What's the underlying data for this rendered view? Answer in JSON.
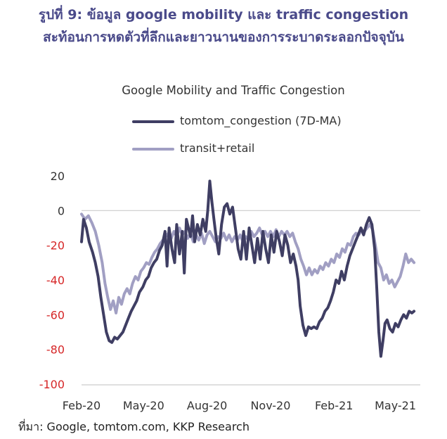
{
  "heading": {
    "line1": "รูปที่ 9: ข้อมูล google mobility และ traffic congestion",
    "line2": "สะท้อนการหดตัวที่ลึกและยาวนานของการระบาดระลอกปัจจุบัน"
  },
  "source": "ที่มา: Google, tomtom.com, KKP Research",
  "colors": {
    "heading": "#4a4a8a",
    "congestion": "#3f3e63",
    "transit": "#a19fc3",
    "positive_tick": "#333333",
    "negative_tick": "#d62728",
    "axis": "#cccccc"
  },
  "chart_data": {
    "type": "line",
    "title": "Google Mobility and Traffic Congestion",
    "xlabel": "",
    "ylabel": "",
    "ylim": [
      -100,
      20
    ],
    "yticks": [
      20,
      0,
      -20,
      -40,
      -60,
      -80,
      -100
    ],
    "xlim": [
      "2020-02-01",
      "2021-05-31"
    ],
    "xticks": [
      {
        "date": "2020-02-01",
        "label": "Feb-20"
      },
      {
        "date": "2020-05-01",
        "label": "May-20"
      },
      {
        "date": "2020-08-01",
        "label": "Aug-20"
      },
      {
        "date": "2020-11-01",
        "label": "Nov-20"
      },
      {
        "date": "2021-02-01",
        "label": "Feb-21"
      },
      {
        "date": "2021-05-01",
        "label": "May-21"
      }
    ],
    "legend_position": "top",
    "grid": false,
    "series": [
      {
        "name": "tomtom_congestion (7D-MA)",
        "points": [
          [
            "2020-02-01",
            -18
          ],
          [
            "2020-02-04",
            -5
          ],
          [
            "2020-02-08",
            -10
          ],
          [
            "2020-02-12",
            -18
          ],
          [
            "2020-02-17",
            -24
          ],
          [
            "2020-02-21",
            -30
          ],
          [
            "2020-02-25",
            -38
          ],
          [
            "2020-02-29",
            -50
          ],
          [
            "2020-03-04",
            -60
          ],
          [
            "2020-03-08",
            -70
          ],
          [
            "2020-03-12",
            -75
          ],
          [
            "2020-03-16",
            -76
          ],
          [
            "2020-03-20",
            -73
          ],
          [
            "2020-03-24",
            -74
          ],
          [
            "2020-03-28",
            -72
          ],
          [
            "2020-04-01",
            -70
          ],
          [
            "2020-04-05",
            -66
          ],
          [
            "2020-04-09",
            -62
          ],
          [
            "2020-04-13",
            -58
          ],
          [
            "2020-04-17",
            -55
          ],
          [
            "2020-04-21",
            -52
          ],
          [
            "2020-04-25",
            -47
          ],
          [
            "2020-04-30",
            -44
          ],
          [
            "2020-05-04",
            -40
          ],
          [
            "2020-05-08",
            -38
          ],
          [
            "2020-05-12",
            -33
          ],
          [
            "2020-05-16",
            -30
          ],
          [
            "2020-05-20",
            -28
          ],
          [
            "2020-05-24",
            -23
          ],
          [
            "2020-05-28",
            -20
          ],
          [
            "2020-06-01",
            -12
          ],
          [
            "2020-06-04",
            -32
          ],
          [
            "2020-06-07",
            -10
          ],
          [
            "2020-06-11",
            -22
          ],
          [
            "2020-06-15",
            -30
          ],
          [
            "2020-06-18",
            -8
          ],
          [
            "2020-06-22",
            -25
          ],
          [
            "2020-06-26",
            -12
          ],
          [
            "2020-06-29",
            -36
          ],
          [
            "2020-07-02",
            -5
          ],
          [
            "2020-07-05",
            -10
          ],
          [
            "2020-07-08",
            -15
          ],
          [
            "2020-07-11",
            -3
          ],
          [
            "2020-07-14",
            -18
          ],
          [
            "2020-07-18",
            -8
          ],
          [
            "2020-07-22",
            -14
          ],
          [
            "2020-07-26",
            -5
          ],
          [
            "2020-07-30",
            -12
          ],
          [
            "2020-08-02",
            0
          ],
          [
            "2020-08-05",
            17
          ],
          [
            "2020-08-08",
            5
          ],
          [
            "2020-08-11",
            -5
          ],
          [
            "2020-08-14",
            -15
          ],
          [
            "2020-08-18",
            -25
          ],
          [
            "2020-08-22",
            -8
          ],
          [
            "2020-08-26",
            2
          ],
          [
            "2020-08-30",
            4
          ],
          [
            "2020-09-03",
            -2
          ],
          [
            "2020-09-07",
            2
          ],
          [
            "2020-09-11",
            -10
          ],
          [
            "2020-09-15",
            -22
          ],
          [
            "2020-09-19",
            -28
          ],
          [
            "2020-09-23",
            -12
          ],
          [
            "2020-09-27",
            -28
          ],
          [
            "2020-10-01",
            -10
          ],
          [
            "2020-10-05",
            -20
          ],
          [
            "2020-10-09",
            -30
          ],
          [
            "2020-10-13",
            -16
          ],
          [
            "2020-10-17",
            -28
          ],
          [
            "2020-10-21",
            -12
          ],
          [
            "2020-10-25",
            -22
          ],
          [
            "2020-10-29",
            -30
          ],
          [
            "2020-11-02",
            -14
          ],
          [
            "2020-11-06",
            -24
          ],
          [
            "2020-11-10",
            -12
          ],
          [
            "2020-11-14",
            -18
          ],
          [
            "2020-11-18",
            -26
          ],
          [
            "2020-11-22",
            -14
          ],
          [
            "2020-11-26",
            -20
          ],
          [
            "2020-11-30",
            -30
          ],
          [
            "2020-12-04",
            -25
          ],
          [
            "2020-12-08",
            -32
          ],
          [
            "2020-12-11",
            -40
          ],
          [
            "2020-12-14",
            -55
          ],
          [
            "2020-12-18",
            -66
          ],
          [
            "2020-12-22",
            -72
          ],
          [
            "2020-12-26",
            -67
          ],
          [
            "2020-12-30",
            -68
          ],
          [
            "2021-01-03",
            -67
          ],
          [
            "2021-01-07",
            -68
          ],
          [
            "2021-01-11",
            -64
          ],
          [
            "2021-01-15",
            -62
          ],
          [
            "2021-01-19",
            -58
          ],
          [
            "2021-01-23",
            -56
          ],
          [
            "2021-01-27",
            -52
          ],
          [
            "2021-01-31",
            -47
          ],
          [
            "2021-02-04",
            -40
          ],
          [
            "2021-02-08",
            -42
          ],
          [
            "2021-02-12",
            -35
          ],
          [
            "2021-02-16",
            -40
          ],
          [
            "2021-02-20",
            -32
          ],
          [
            "2021-02-24",
            -26
          ],
          [
            "2021-02-28",
            -22
          ],
          [
            "2021-03-04",
            -18
          ],
          [
            "2021-03-08",
            -14
          ],
          [
            "2021-03-12",
            -10
          ],
          [
            "2021-03-16",
            -14
          ],
          [
            "2021-03-20",
            -8
          ],
          [
            "2021-03-24",
            -4
          ],
          [
            "2021-03-28",
            -8
          ],
          [
            "2021-04-01",
            -22
          ],
          [
            "2021-04-04",
            -45
          ],
          [
            "2021-04-07",
            -70
          ],
          [
            "2021-04-10",
            -84
          ],
          [
            "2021-04-13",
            -75
          ],
          [
            "2021-04-16",
            -65
          ],
          [
            "2021-04-19",
            -63
          ],
          [
            "2021-04-23",
            -68
          ],
          [
            "2021-04-27",
            -70
          ],
          [
            "2021-05-01",
            -65
          ],
          [
            "2021-05-05",
            -67
          ],
          [
            "2021-05-09",
            -63
          ],
          [
            "2021-05-13",
            -60
          ],
          [
            "2021-05-17",
            -62
          ],
          [
            "2021-05-21",
            -58
          ],
          [
            "2021-05-25",
            -59
          ],
          [
            "2021-05-28",
            -58
          ]
        ]
      },
      {
        "name": "transit+retail",
        "points": [
          [
            "2020-02-01",
            -2
          ],
          [
            "2020-02-06",
            -5
          ],
          [
            "2020-02-11",
            -3
          ],
          [
            "2020-02-16",
            -7
          ],
          [
            "2020-02-21",
            -12
          ],
          [
            "2020-02-26",
            -20
          ],
          [
            "2020-03-02",
            -30
          ],
          [
            "2020-03-06",
            -42
          ],
          [
            "2020-03-10",
            -50
          ],
          [
            "2020-03-14",
            -57
          ],
          [
            "2020-03-18",
            -52
          ],
          [
            "2020-03-22",
            -59
          ],
          [
            "2020-03-26",
            -50
          ],
          [
            "2020-03-30",
            -54
          ],
          [
            "2020-04-03",
            -48
          ],
          [
            "2020-04-07",
            -45
          ],
          [
            "2020-04-11",
            -48
          ],
          [
            "2020-04-15",
            -42
          ],
          [
            "2020-04-19",
            -38
          ],
          [
            "2020-04-23",
            -40
          ],
          [
            "2020-04-27",
            -35
          ],
          [
            "2020-05-01",
            -33
          ],
          [
            "2020-05-05",
            -30
          ],
          [
            "2020-05-09",
            -31
          ],
          [
            "2020-05-13",
            -27
          ],
          [
            "2020-05-17",
            -24
          ],
          [
            "2020-05-21",
            -22
          ],
          [
            "2020-05-25",
            -19
          ],
          [
            "2020-05-29",
            -17
          ],
          [
            "2020-06-02",
            -15
          ],
          [
            "2020-06-06",
            -13
          ],
          [
            "2020-06-10",
            -16
          ],
          [
            "2020-06-14",
            -12
          ],
          [
            "2020-06-18",
            -15
          ],
          [
            "2020-06-22",
            -10
          ],
          [
            "2020-06-26",
            -14
          ],
          [
            "2020-06-30",
            -12
          ],
          [
            "2020-07-04",
            -16
          ],
          [
            "2020-07-08",
            -13
          ],
          [
            "2020-07-12",
            -18
          ],
          [
            "2020-07-16",
            -14
          ],
          [
            "2020-07-20",
            -17
          ],
          [
            "2020-07-24",
            -13
          ],
          [
            "2020-07-28",
            -19
          ],
          [
            "2020-08-01",
            -14
          ],
          [
            "2020-08-05",
            -12
          ],
          [
            "2020-08-09",
            -15
          ],
          [
            "2020-08-13",
            -18
          ],
          [
            "2020-08-17",
            -15
          ],
          [
            "2020-08-21",
            -16
          ],
          [
            "2020-08-25",
            -13
          ],
          [
            "2020-08-29",
            -17
          ],
          [
            "2020-09-02",
            -14
          ],
          [
            "2020-09-06",
            -18
          ],
          [
            "2020-09-10",
            -15
          ],
          [
            "2020-09-14",
            -17
          ],
          [
            "2020-09-18",
            -14
          ],
          [
            "2020-09-22",
            -18
          ],
          [
            "2020-09-26",
            -15
          ],
          [
            "2020-09-30",
            -17
          ],
          [
            "2020-10-04",
            -12
          ],
          [
            "2020-10-08",
            -15
          ],
          [
            "2020-10-12",
            -13
          ],
          [
            "2020-10-16",
            -10
          ],
          [
            "2020-10-20",
            -14
          ],
          [
            "2020-10-24",
            -12
          ],
          [
            "2020-10-28",
            -15
          ],
          [
            "2020-11-01",
            -12
          ],
          [
            "2020-11-05",
            -15
          ],
          [
            "2020-11-09",
            -11
          ],
          [
            "2020-11-13",
            -15
          ],
          [
            "2020-11-17",
            -12
          ],
          [
            "2020-11-21",
            -14
          ],
          [
            "2020-11-25",
            -12
          ],
          [
            "2020-11-29",
            -15
          ],
          [
            "2020-12-03",
            -13
          ],
          [
            "2020-12-07",
            -18
          ],
          [
            "2020-12-11",
            -22
          ],
          [
            "2020-12-15",
            -28
          ],
          [
            "2020-12-19",
            -32
          ],
          [
            "2020-12-23",
            -37
          ],
          [
            "2020-12-27",
            -33
          ],
          [
            "2020-12-31",
            -37
          ],
          [
            "2021-01-04",
            -34
          ],
          [
            "2021-01-08",
            -36
          ],
          [
            "2021-01-12",
            -32
          ],
          [
            "2021-01-16",
            -34
          ],
          [
            "2021-01-20",
            -30
          ],
          [
            "2021-01-24",
            -32
          ],
          [
            "2021-01-28",
            -28
          ],
          [
            "2021-02-01",
            -30
          ],
          [
            "2021-02-05",
            -25
          ],
          [
            "2021-02-09",
            -27
          ],
          [
            "2021-02-13",
            -22
          ],
          [
            "2021-02-17",
            -24
          ],
          [
            "2021-02-21",
            -19
          ],
          [
            "2021-02-25",
            -20
          ],
          [
            "2021-03-01",
            -15
          ],
          [
            "2021-03-05",
            -13
          ],
          [
            "2021-03-09",
            -14
          ],
          [
            "2021-03-13",
            -11
          ],
          [
            "2021-03-17",
            -12
          ],
          [
            "2021-03-21",
            -10
          ],
          [
            "2021-03-25",
            -8
          ],
          [
            "2021-03-29",
            -11
          ],
          [
            "2021-04-02",
            -20
          ],
          [
            "2021-04-06",
            -30
          ],
          [
            "2021-04-10",
            -33
          ],
          [
            "2021-04-14",
            -40
          ],
          [
            "2021-04-18",
            -37
          ],
          [
            "2021-04-22",
            -42
          ],
          [
            "2021-04-26",
            -40
          ],
          [
            "2021-04-30",
            -44
          ],
          [
            "2021-05-04",
            -41
          ],
          [
            "2021-05-08",
            -38
          ],
          [
            "2021-05-12",
            -32
          ],
          [
            "2021-05-16",
            -25
          ],
          [
            "2021-05-20",
            -30
          ],
          [
            "2021-05-24",
            -28
          ],
          [
            "2021-05-28",
            -30
          ]
        ]
      }
    ]
  }
}
